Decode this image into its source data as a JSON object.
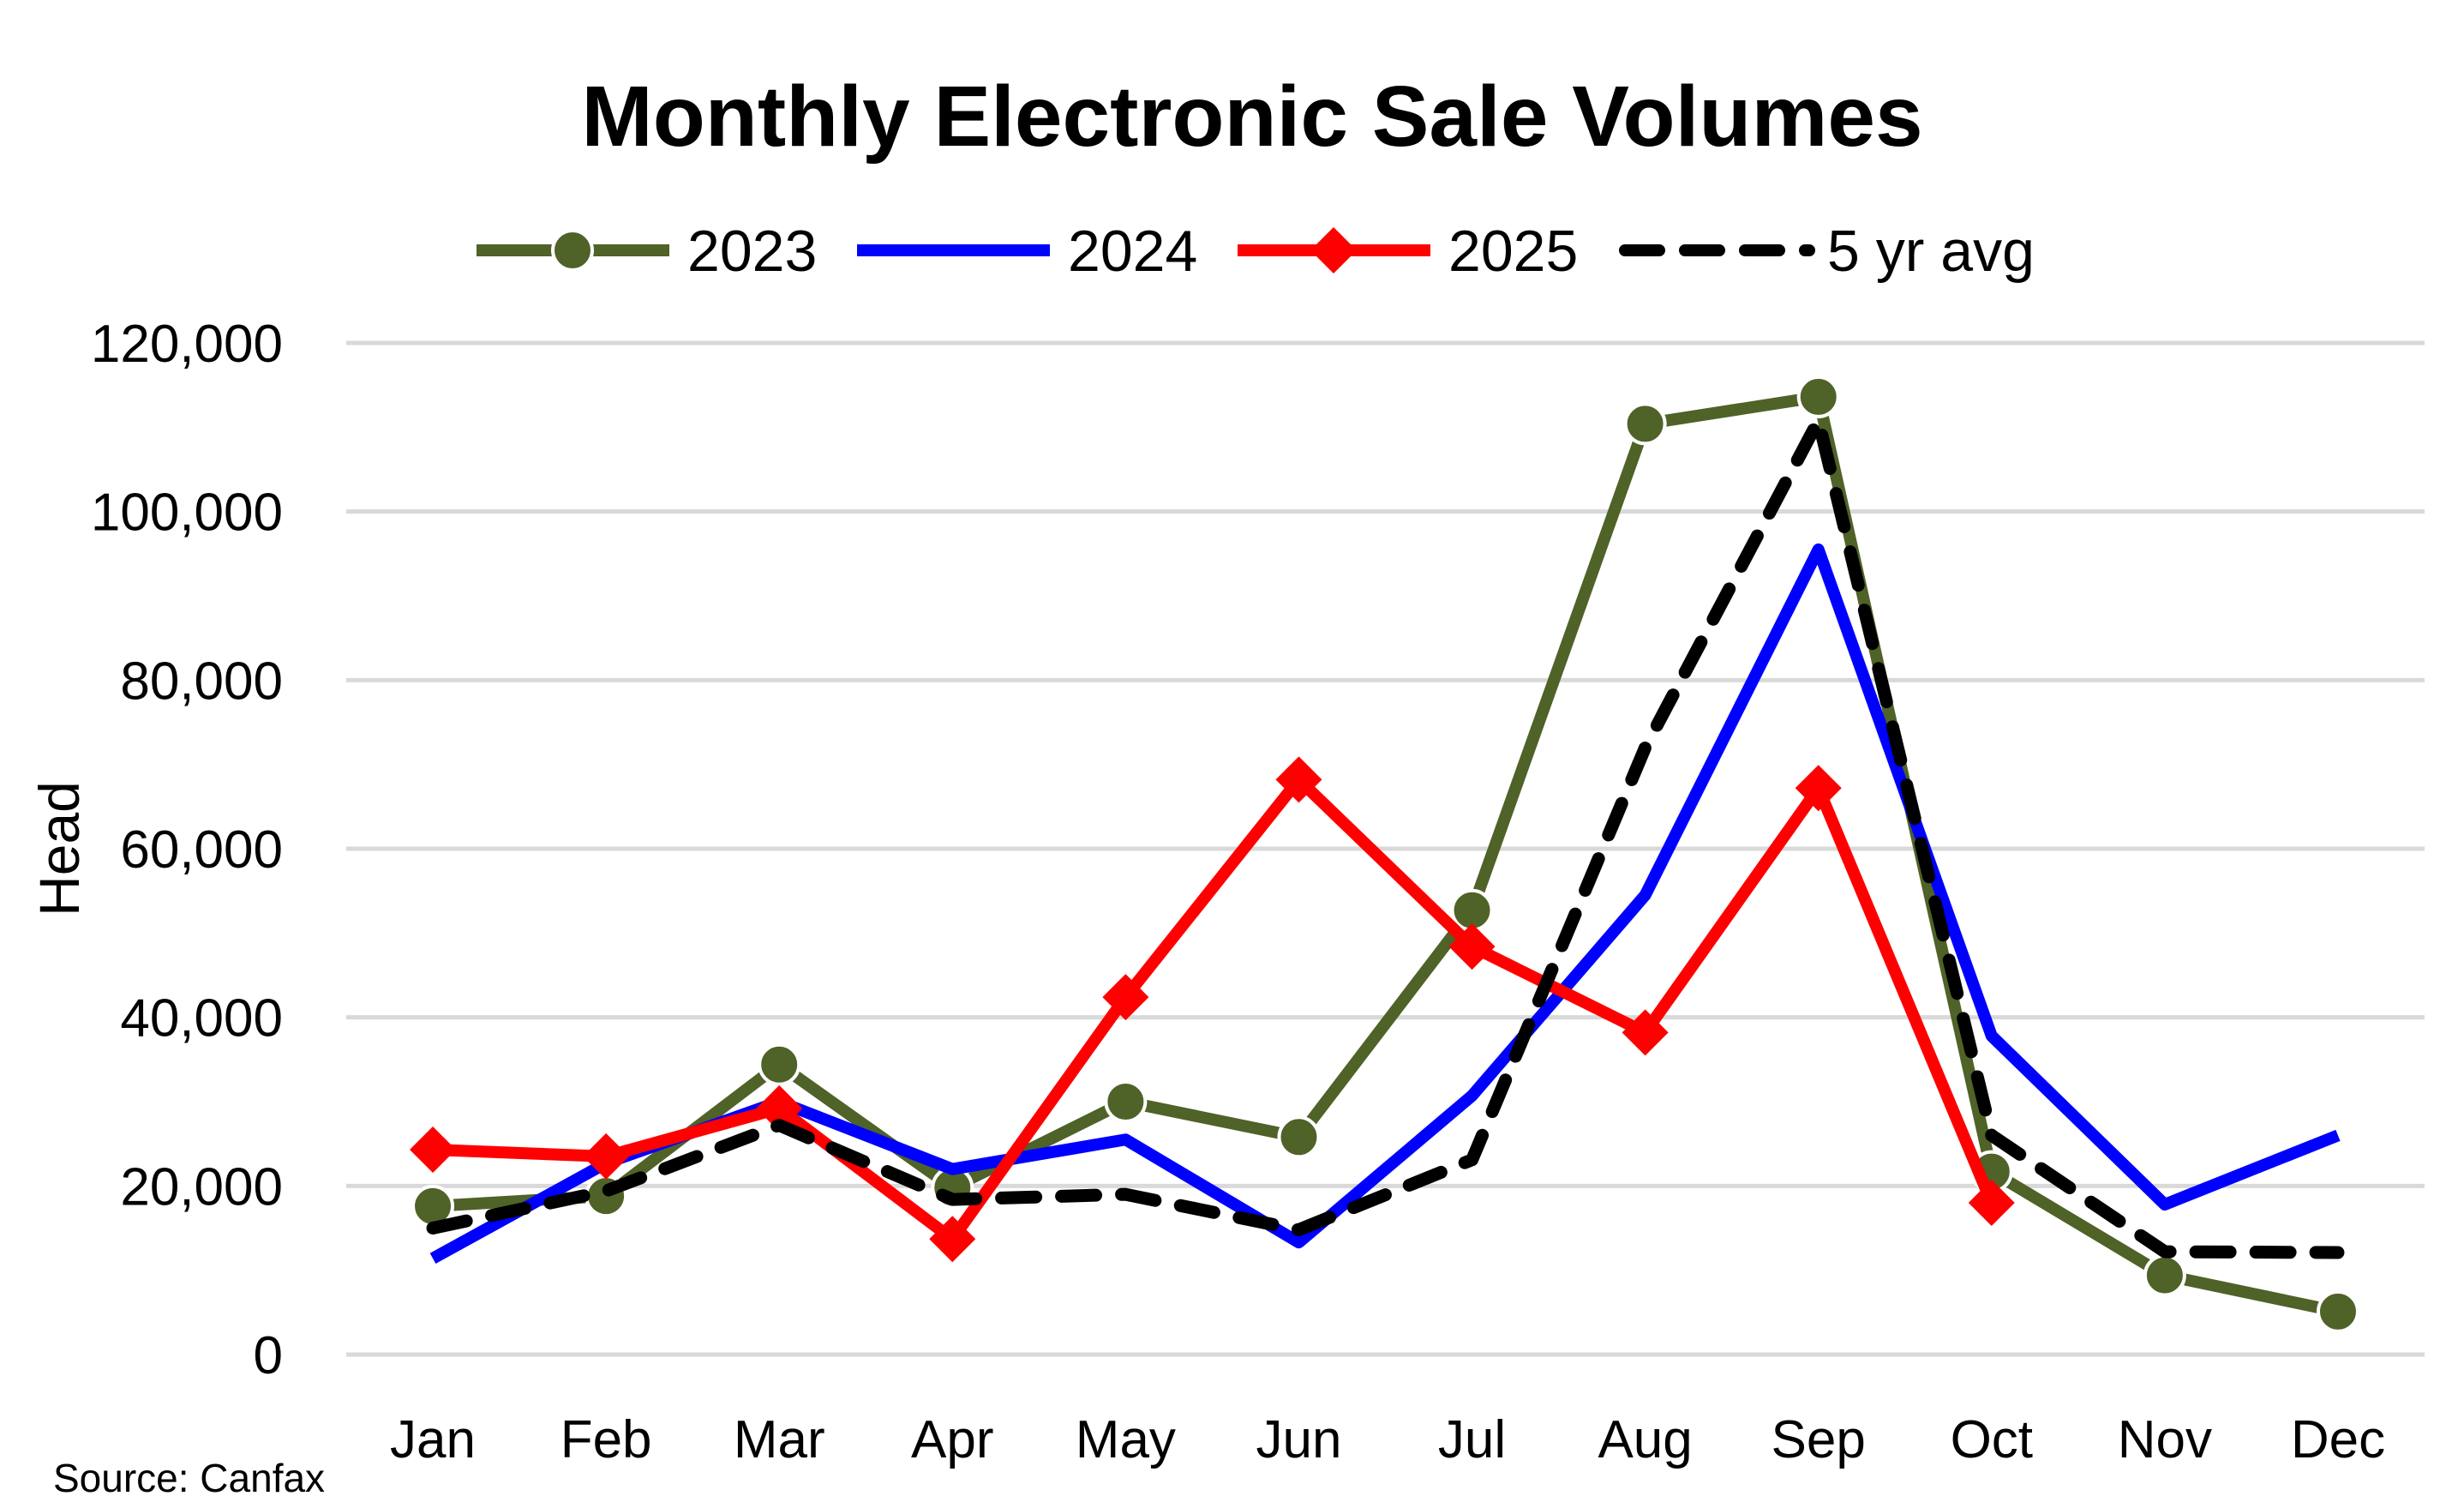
{
  "chart_data": {
    "type": "line",
    "title": "Monthly Electronic Sale Volumes",
    "xlabel": "",
    "ylabel": "Head",
    "source": "Source: Canfax",
    "categories": [
      "Jan",
      "Feb",
      "Mar",
      "Apr",
      "May",
      "Jun",
      "Jul",
      "Aug",
      "Sep",
      "Oct",
      "Nov",
      "Dec"
    ],
    "ylim": [
      0,
      120000
    ],
    "yticks": [
      0,
      20000,
      40000,
      60000,
      80000,
      100000,
      120000
    ],
    "ytick_labels": [
      "0",
      "20,000",
      "40,000",
      "60,000",
      "80,000",
      "100,000",
      "120,000"
    ],
    "grid": true,
    "legend_position": "top",
    "series": [
      {
        "name": "2023",
        "color": "#4F6228",
        "marker": "circle",
        "dash": false,
        "values": [
          17600,
          18800,
          34400,
          19800,
          30000,
          25800,
          52700,
          110400,
          113600,
          21700,
          9400,
          5100
        ]
      },
      {
        "name": "2024",
        "color": "#0000FF",
        "marker": "none",
        "dash": false,
        "values": [
          11400,
          22700,
          30000,
          22000,
          25500,
          13300,
          30700,
          54500,
          95500,
          37800,
          17800,
          26000
        ]
      },
      {
        "name": "2025",
        "color": "#FF0000",
        "marker": "diamond",
        "dash": false,
        "values": [
          24300,
          23500,
          29200,
          13700,
          42400,
          68200,
          48400,
          38200,
          67200,
          18000,
          null,
          null
        ]
      },
      {
        "name": "5 yr avg",
        "color": "#000000",
        "marker": "none",
        "dash": true,
        "values": [
          15000,
          19400,
          27200,
          18400,
          19000,
          14800,
          23100,
          72000,
          110800,
          26000,
          12200,
          12100
        ]
      }
    ]
  }
}
